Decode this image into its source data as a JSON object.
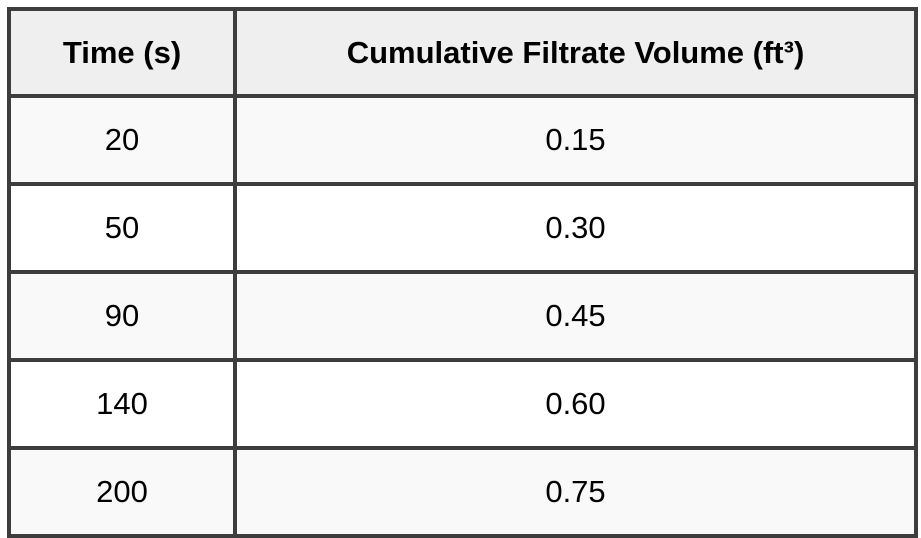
{
  "table": {
    "headers": {
      "time": "Time (s)",
      "volume": "Cumulative Filtrate Volume (ft³)"
    },
    "rows": [
      {
        "time": "20",
        "volume": "0.15"
      },
      {
        "time": "50",
        "volume": "0.30"
      },
      {
        "time": "90",
        "volume": "0.45"
      },
      {
        "time": "140",
        "volume": "0.60"
      },
      {
        "time": "200",
        "volume": "0.75"
      }
    ]
  },
  "colors": {
    "border": "#3d3d3d",
    "header_bg": "#efefef",
    "row_odd_bg": "#f9f9f9",
    "row_even_bg": "#ffffff",
    "text": "#000000"
  },
  "chart_data": {
    "type": "table",
    "title": "",
    "columns": [
      "Time (s)",
      "Cumulative Filtrate Volume (ft³)"
    ],
    "x": [
      20,
      50,
      90,
      140,
      200
    ],
    "series": [
      {
        "name": "Cumulative Filtrate Volume (ft³)",
        "values": [
          0.15,
          0.3,
          0.45,
          0.6,
          0.75
        ]
      }
    ]
  }
}
